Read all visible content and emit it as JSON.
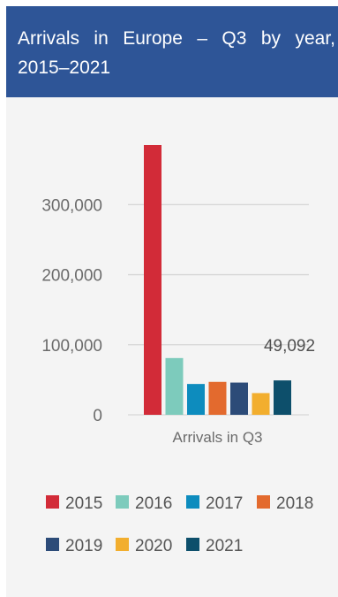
{
  "title": "Arrivals in Europe – Q3 by year, 2015–2021",
  "chart_data": {
    "type": "bar",
    "title": "Arrivals in Europe – Q3 by year, 2015–2021",
    "categories": [
      "Arrivals in Q3"
    ],
    "series": [
      {
        "name": "2015",
        "values": [
          385000
        ],
        "color": "#d22b38"
      },
      {
        "name": "2016",
        "values": [
          81000
        ],
        "color": "#7dcbbc"
      },
      {
        "name": "2017",
        "values": [
          44000
        ],
        "color": "#0d8cbe"
      },
      {
        "name": "2018",
        "values": [
          47000
        ],
        "color": "#e36a2e"
      },
      {
        "name": "2019",
        "values": [
          46000
        ],
        "color": "#2c4b78"
      },
      {
        "name": "2020",
        "values": [
          31000
        ],
        "color": "#f2ae2e"
      },
      {
        "name": "2021",
        "values": [
          49092
        ],
        "color": "#0d4f6b"
      }
    ],
    "ylim": [
      0,
      385000
    ],
    "yticks": [
      0,
      100000,
      200000,
      300000
    ],
    "ytick_labels": [
      "0",
      "100,000",
      "200,000",
      "300,000"
    ],
    "data_labels": [
      {
        "series": "2021",
        "text": "49,092"
      }
    ],
    "grid": true,
    "legend_position": "bottom",
    "xlabel": "",
    "ylabel": ""
  }
}
